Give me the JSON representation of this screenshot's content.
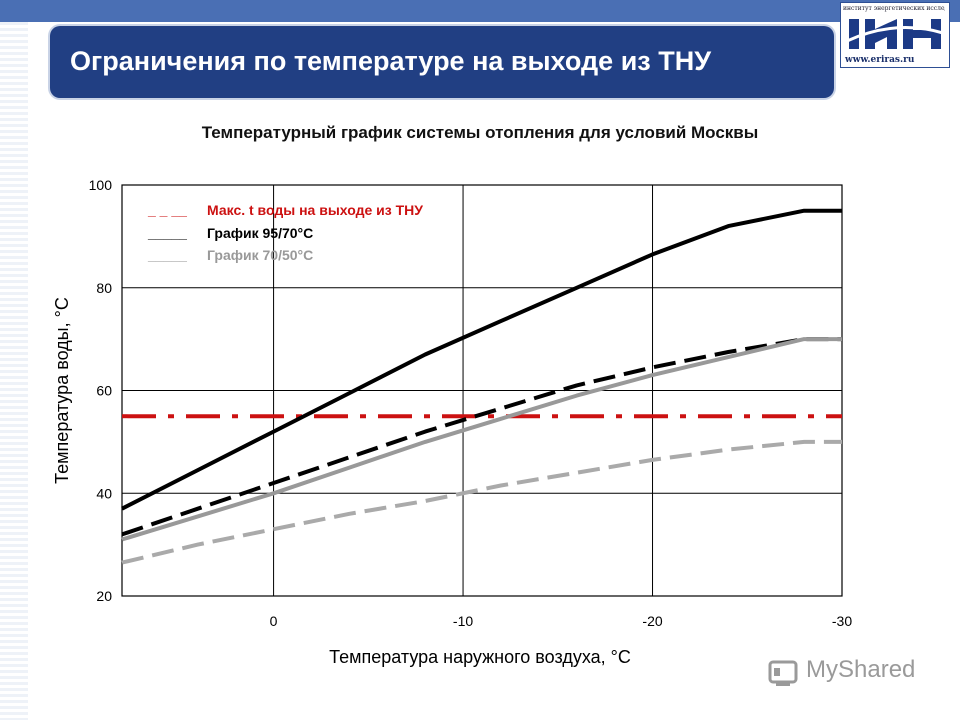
{
  "slide": {
    "title": "Ограничения по температуре на выходе из ТНУ",
    "logo": {
      "top_text": "институт энергетических исследований",
      "url": "www.eriras.ru"
    },
    "watermark": "MyShared"
  },
  "chart_data": {
    "type": "line",
    "title": "Температурный график системы отопления для условий Москвы",
    "xlabel": "Температура наружного воздуха, °С",
    "ylabel": "Температура воды, °С",
    "xlim": [
      8,
      -30
    ],
    "ylim": [
      20,
      100
    ],
    "x_ticks": [
      0,
      -10,
      -20,
      -30
    ],
    "x_tick_labels": [
      "0",
      "-10",
      "-20",
      "-30"
    ],
    "y_ticks": [
      20,
      40,
      60,
      80,
      100
    ],
    "y_tick_labels": [
      "20",
      "40",
      "60",
      "80",
      "100"
    ],
    "grid": true,
    "legend": {
      "placement": "top-left",
      "entries": [
        {
          "marker": "_ _ __",
          "label": "Макс. t  воды на выходе из ТНУ",
          "color": "#cc1111"
        },
        {
          "marker": "_____",
          "label": "График 95/70°С",
          "color": "#000000"
        },
        {
          "marker": "_____",
          "label": "График 70/50°С",
          "color": "#999999"
        }
      ]
    },
    "series": [
      {
        "key": "max_hpu",
        "x": [
          8,
          -30
        ],
        "y": [
          55,
          55
        ],
        "color": "#cc1111",
        "style": "dashdot"
      },
      {
        "key": "supply_95",
        "x": [
          8,
          4,
          0,
          -4,
          -8,
          -12,
          -16,
          -20,
          -24,
          -28,
          -30
        ],
        "y": [
          37,
          44.5,
          52,
          59.5,
          67,
          73.5,
          80,
          86.5,
          92,
          95,
          95
        ],
        "color": "#000000",
        "style": "solid"
      },
      {
        "key": "return_70",
        "x": [
          8,
          4,
          0,
          -4,
          -8,
          -12,
          -16,
          -20,
          -24,
          -28,
          -30
        ],
        "y": [
          32,
          37,
          42,
          47,
          52,
          56.5,
          61,
          64.5,
          67.5,
          70,
          70
        ],
        "color": "#000000",
        "style": "dashed"
      },
      {
        "key": "supply_70",
        "x": [
          8,
          4,
          0,
          -4,
          -8,
          -12,
          -16,
          -20,
          -24,
          -28,
          -30
        ],
        "y": [
          31,
          35.5,
          40,
          45,
          50,
          54.5,
          59,
          63,
          66.5,
          70,
          70
        ],
        "color": "#999999",
        "style": "solid"
      },
      {
        "key": "return_50",
        "x": [
          8,
          4,
          0,
          -4,
          -8,
          -12,
          -16,
          -20,
          -24,
          -28,
          -30
        ],
        "y": [
          26.5,
          30,
          33,
          36,
          38.5,
          41.5,
          44,
          46.5,
          48.5,
          50,
          50
        ],
        "color": "#aaaaaa",
        "style": "dashed"
      }
    ]
  }
}
